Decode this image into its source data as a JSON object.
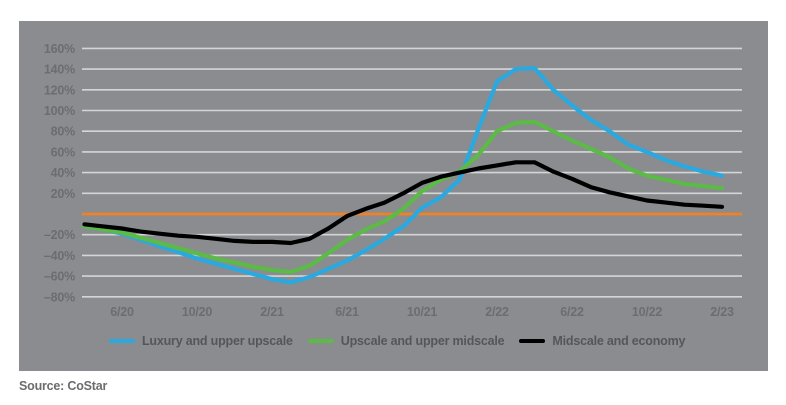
{
  "colors": {
    "panel_bg": "#8a8c8f",
    "gridline": "#d4d5d7",
    "axis_label": "#6b6d6f",
    "zero_line": "#f08127",
    "legend_text": "#55565a",
    "source_text": "#6b6c6e",
    "series_luxury": "#2aa9e0",
    "series_upscale": "#5cba47",
    "series_midscale": "#000000"
  },
  "chart_data": {
    "type": "line",
    "x": [
      "4/20",
      "5/20",
      "6/20",
      "7/20",
      "8/20",
      "9/20",
      "10/20",
      "11/20",
      "12/20",
      "1/21",
      "2/21",
      "3/21",
      "4/21",
      "5/21",
      "6/21",
      "7/21",
      "8/21",
      "9/21",
      "10/21",
      "11/21",
      "12/21",
      "1/22",
      "2/22",
      "3/22",
      "4/22",
      "5/22",
      "6/22",
      "7/22",
      "8/22",
      "9/22",
      "10/22",
      "11/22",
      "12/22",
      "1/23",
      "2/23"
    ],
    "x_tick_labels": [
      "6/20",
      "10/20",
      "2/21",
      "6/21",
      "10/21",
      "2/22",
      "6/22",
      "10/22",
      "2/23"
    ],
    "y_ticks": [
      {
        "label": "160%",
        "value": 160
      },
      {
        "label": "140%",
        "value": 140
      },
      {
        "label": "120%",
        "value": 120
      },
      {
        "label": "100%",
        "value": 100
      },
      {
        "label": "80%",
        "value": 80
      },
      {
        "label": "60%",
        "value": 60
      },
      {
        "label": "40%",
        "value": 40
      },
      {
        "label": "20%",
        "value": 20
      },
      {
        "label": "–20%",
        "value": -20
      },
      {
        "label": "–40%",
        "value": -40
      },
      {
        "label": "–60%",
        "value": -60
      },
      {
        "label": "–80%",
        "value": -80
      }
    ],
    "ylim": [
      -80,
      160
    ],
    "zero_line_value": 0,
    "grid": true,
    "legend_position": "bottom",
    "series": [
      {
        "name": "Luxury and upper upscale",
        "color": "#2aa9e0",
        "values": [
          -12,
          -15,
          -19,
          -25,
          -31,
          -37,
          -43,
          -48,
          -53,
          -58,
          -63,
          -66,
          -61,
          -53,
          -45,
          -35,
          -24,
          -12,
          6,
          16,
          33,
          82,
          128,
          140,
          141,
          120,
          105,
          91,
          80,
          67,
          60,
          52,
          46,
          41,
          37
        ]
      },
      {
        "name": "Upscale and upper midscale",
        "color": "#5cba47",
        "values": [
          -12,
          -15,
          -18,
          -23,
          -28,
          -33,
          -38,
          -43,
          -47,
          -51,
          -54,
          -56,
          -50,
          -38,
          -25,
          -15,
          -7,
          5,
          22,
          33,
          41,
          57,
          80,
          88,
          89,
          80,
          71,
          63,
          55,
          44,
          37,
          33,
          29,
          27,
          25
        ]
      },
      {
        "name": "Midscale and economy",
        "color": "#000000",
        "values": [
          -10,
          -12,
          -14,
          -17,
          -19,
          -21,
          -22,
          -24,
          -26,
          -27,
          -27,
          -28,
          -24,
          -14,
          -2,
          5,
          11,
          20,
          30,
          36,
          40,
          44,
          47,
          50,
          50,
          41,
          34,
          26,
          21,
          17,
          13,
          11,
          9,
          8,
          7
        ]
      }
    ]
  },
  "footer": {
    "source_label": "Source: CoStar"
  }
}
